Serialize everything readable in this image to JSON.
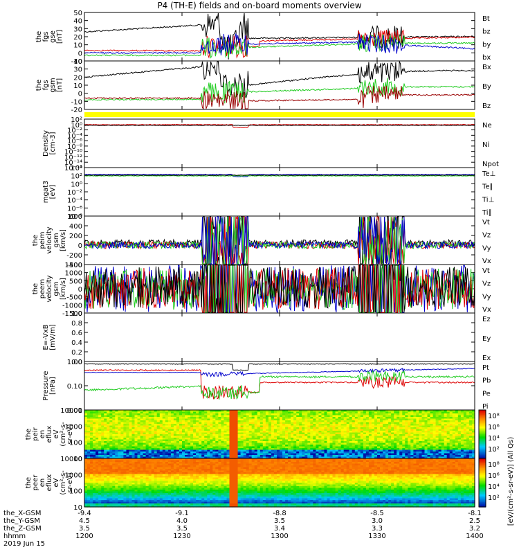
{
  "title": "P4 (TH-E) fields and on-board moments overview",
  "colors": {
    "black": "#000000",
    "red": "#dd0000",
    "green": "#22cc22",
    "blue": "#0000cc",
    "darkred": "#990000",
    "yellow": "#ffff00"
  },
  "chart_data": [
    {
      "type": "line",
      "id": "fgs",
      "ylabel": [
        "the",
        "fgs",
        "gse",
        "[nT]"
      ],
      "yticks": [
        "50",
        "40",
        "30",
        "20",
        "10",
        "0",
        "-10"
      ],
      "ylim": [
        -10,
        50
      ],
      "legend": [
        {
          "name": "Bt",
          "color": "#000000"
        },
        {
          "name": "bz",
          "color": "#dd0000"
        },
        {
          "name": "by",
          "color": "#22cc22"
        },
        {
          "name": "bx",
          "color": "#0000cc"
        }
      ]
    },
    {
      "type": "line",
      "id": "fgs_gsm",
      "ylabel": [
        "the",
        "fgs",
        "gsm",
        "[nT]"
      ],
      "yticks": [
        "40",
        "30",
        "20",
        "10",
        "0",
        "-10",
        "-20"
      ],
      "ylim": [
        -20,
        40
      ],
      "legend": [
        {
          "name": "Bx",
          "color": "#22cc22"
        },
        {
          "name": "By",
          "color": "#000000"
        },
        {
          "name": "Bz",
          "color": "#990000"
        }
      ]
    },
    {
      "type": "line",
      "id": "density",
      "ylabel": [
        "Density",
        "[cm-3]"
      ],
      "yticks": [
        "10²",
        "10⁰",
        "10⁻²",
        "10⁻⁴",
        "10⁻⁶",
        "10⁻⁸",
        "10⁻¹⁰",
        "10⁻¹²",
        "10⁻¹⁴",
        "10⁻¹⁶"
      ],
      "scale": "log",
      "legend": [
        {
          "name": "Ne",
          "color": "#dd0000"
        },
        {
          "name": "Ni",
          "color": "#000000"
        },
        {
          "name": "Npot",
          "color": "#0000cc"
        }
      ]
    },
    {
      "type": "line",
      "id": "temp",
      "ylabel": [
        "mgat3",
        "[eV]"
      ],
      "yticks": [
        "10⁴",
        "10²",
        "10⁰",
        "10⁻²",
        "10⁻⁴",
        "10⁻⁶",
        "10⁻⁸"
      ],
      "scale": "log",
      "legend": [
        {
          "name": "Te⊥",
          "color": "#dd0000"
        },
        {
          "name": "Te∥",
          "color": "#000000"
        },
        {
          "name": "Ti⊥",
          "color": "#0000cc"
        },
        {
          "name": "Ti∥",
          "color": "#22cc22"
        }
      ]
    },
    {
      "type": "line",
      "id": "peim",
      "ylabel": [
        "the",
        "peim",
        "velocity",
        "gsm",
        "[km/s]"
      ],
      "yticks": [
        "600",
        "400",
        "200",
        "0",
        "-200",
        "-400"
      ],
      "ylim": [
        -400,
        600
      ],
      "legend": [
        {
          "name": "Vt",
          "color": "#000000"
        },
        {
          "name": "Vz",
          "color": "#dd0000"
        },
        {
          "name": "Vy",
          "color": "#22cc22"
        },
        {
          "name": "Vx",
          "color": "#0000cc"
        }
      ]
    },
    {
      "type": "line",
      "id": "peem",
      "ylabel": [
        "the",
        "peem",
        "velocity",
        "gsm",
        "[km/s]"
      ],
      "yticks": [
        "1500",
        "1000",
        "500",
        "0",
        "-500",
        "-1000",
        "-1500"
      ],
      "ylim": [
        -1500,
        1500
      ],
      "legend": [
        {
          "name": "Vt",
          "color": "#000000"
        },
        {
          "name": "Vz",
          "color": "#dd0000"
        },
        {
          "name": "Vy",
          "color": "#22cc22"
        },
        {
          "name": "Vx",
          "color": "#0000cc"
        }
      ]
    },
    {
      "type": "line",
      "id": "efield",
      "ylabel": [
        "E=-VxB",
        "[mV/m]"
      ],
      "yticks": [
        "1.0",
        "0.8",
        "0.6",
        "0.4",
        "0.2",
        "0.0"
      ],
      "ylim": [
        0,
        1
      ],
      "legend": [
        {
          "name": "Ez",
          "color": "#dd0000"
        },
        {
          "name": "Ey",
          "color": "#22cc22"
        },
        {
          "name": "Ex",
          "color": "#0000cc"
        }
      ]
    },
    {
      "type": "line",
      "id": "pressure",
      "ylabel": [
        "Pressure",
        "[nPa]"
      ],
      "yticks": [
        "1.00",
        "0.10",
        "0.01"
      ],
      "scale": "log",
      "legend": [
        {
          "name": "Pt",
          "color": "#000000"
        },
        {
          "name": "Pb",
          "color": "#dd0000"
        },
        {
          "name": "Pe",
          "color": "#22cc22"
        },
        {
          "name": "Pi",
          "color": "#0000cc"
        }
      ]
    },
    {
      "type": "heatmap",
      "id": "peir",
      "ylabel": [
        "the",
        "peir",
        "en",
        "eflux",
        "eV",
        "(cm²-s-",
        "sr-eV)"
      ],
      "yticks": [
        "10000",
        "1000",
        "100",
        "10"
      ],
      "colorbar": {
        "ticks": [
          "10⁸",
          "10⁶",
          "10⁴",
          "10²"
        ]
      }
    },
    {
      "type": "heatmap",
      "id": "peer",
      "ylabel": [
        "the",
        "peer",
        "en",
        "eflux",
        "eV",
        "(cm²-s-",
        "sr-eV)"
      ],
      "yticks": [
        "10000",
        "1000",
        "100",
        "10"
      ],
      "colorbar": {
        "ticks": [
          "10⁸",
          "10⁶",
          "10⁴",
          "10²"
        ]
      }
    }
  ],
  "colorbar_label": "[eV/(cm²-s-sr-eV)] (All Qs)",
  "xaxis": {
    "rows": [
      {
        "label": "the_X-GSM",
        "values": [
          "-9.4",
          "-9.1",
          "-8.8",
          "-8.5",
          "-8.1"
        ]
      },
      {
        "label": "the_Y-GSM",
        "values": [
          "4.5",
          "4.0",
          "3.5",
          "3.0",
          "2.5"
        ]
      },
      {
        "label": "the_Z-GSM",
        "values": [
          "3.5",
          "3.5",
          "3.4",
          "3.3",
          "3.2"
        ]
      },
      {
        "label": "hhmm",
        "values": [
          "1200",
          "1230",
          "1300",
          "1330",
          "1400"
        ]
      }
    ],
    "date": "2019 Jun 15"
  }
}
